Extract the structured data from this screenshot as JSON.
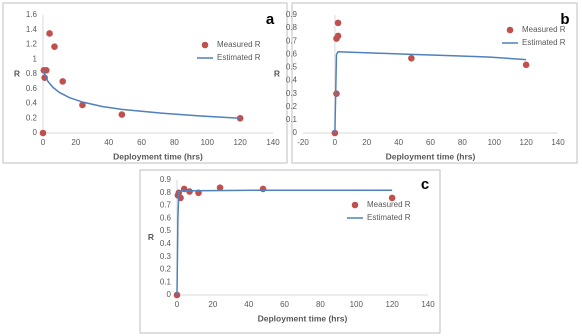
{
  "chart_data": [
    {
      "type": "scatter",
      "label": "a",
      "x_label": "Deployment time (hrs)",
      "y_label": "R",
      "legend": "right",
      "xlim": [
        0,
        140
      ],
      "xticks": [
        0,
        20,
        40,
        60,
        80,
        100,
        120,
        140
      ],
      "ylim": [
        0,
        1.6
      ],
      "yticks": [
        0,
        0.2,
        0.4,
        0.6,
        0.8,
        1,
        1.2,
        1.4,
        1.6
      ],
      "series": [
        {
          "name": "Measured R",
          "mode": "markers",
          "color": "#c0504d",
          "x": [
            0,
            0.5,
            1,
            2,
            4,
            7,
            12,
            24,
            48,
            120
          ],
          "values": [
            0,
            0.85,
            0.75,
            0.85,
            1.35,
            1.17,
            0.7,
            0.38,
            0.25,
            0.2
          ]
        },
        {
          "name": "Estimated R",
          "mode": "line",
          "color": "#4f81bd",
          "x": [
            0.5,
            1,
            3,
            6,
            10,
            16,
            24,
            36,
            48,
            72,
            96,
            120
          ],
          "values": [
            0.85,
            0.8,
            0.7,
            0.62,
            0.55,
            0.48,
            0.42,
            0.36,
            0.32,
            0.27,
            0.23,
            0.2
          ]
        }
      ]
    },
    {
      "type": "scatter",
      "label": "b",
      "x_label": "Deployment time (hrs)",
      "y_label": "R",
      "legend": "right",
      "xlim": [
        -20,
        140
      ],
      "xticks": [
        -20,
        0,
        20,
        40,
        60,
        80,
        100,
        120,
        140
      ],
      "ylim": [
        0,
        0.9
      ],
      "yticks": [
        0,
        0.1,
        0.2,
        0.3,
        0.4,
        0.5,
        0.6,
        0.7,
        0.8,
        0.9
      ],
      "series": [
        {
          "name": "Measured R",
          "mode": "markers",
          "color": "#c0504d",
          "x": [
            0,
            1,
            1,
            2,
            2,
            48,
            120
          ],
          "values": [
            0,
            0.3,
            0.72,
            0.74,
            0.84,
            0.57,
            0.52
          ]
        },
        {
          "name": "Estimated R",
          "mode": "line",
          "color": "#4f81bd",
          "x": [
            0,
            0.5,
            1,
            2,
            24,
            48,
            72,
            96,
            120
          ],
          "values": [
            0,
            0.3,
            0.6,
            0.62,
            0.61,
            0.6,
            0.59,
            0.58,
            0.56
          ]
        }
      ]
    },
    {
      "type": "scatter",
      "label": "c",
      "x_label": "Deployment time (hrs)",
      "y_label": "R",
      "legend": "right",
      "xlim": [
        0,
        140
      ],
      "xticks": [
        0,
        20,
        40,
        60,
        80,
        100,
        120,
        140
      ],
      "ylim": [
        0,
        0.9
      ],
      "yticks": [
        0,
        0.1,
        0.2,
        0.3,
        0.4,
        0.5,
        0.6,
        0.7,
        0.8,
        0.9
      ],
      "series": [
        {
          "name": "Measured R",
          "mode": "markers",
          "color": "#c0504d",
          "x": [
            0,
            0.5,
            1,
            2,
            4,
            7,
            12,
            24,
            48,
            120
          ],
          "values": [
            0,
            0.78,
            0.8,
            0.76,
            0.83,
            0.81,
            0.8,
            0.84,
            0.83,
            0.76
          ]
        },
        {
          "name": "Estimated R",
          "mode": "line",
          "color": "#4f81bd",
          "x": [
            0,
            0.5,
            1,
            2,
            48,
            120
          ],
          "values": [
            0,
            0.6,
            0.81,
            0.815,
            0.82,
            0.82
          ]
        }
      ]
    }
  ]
}
